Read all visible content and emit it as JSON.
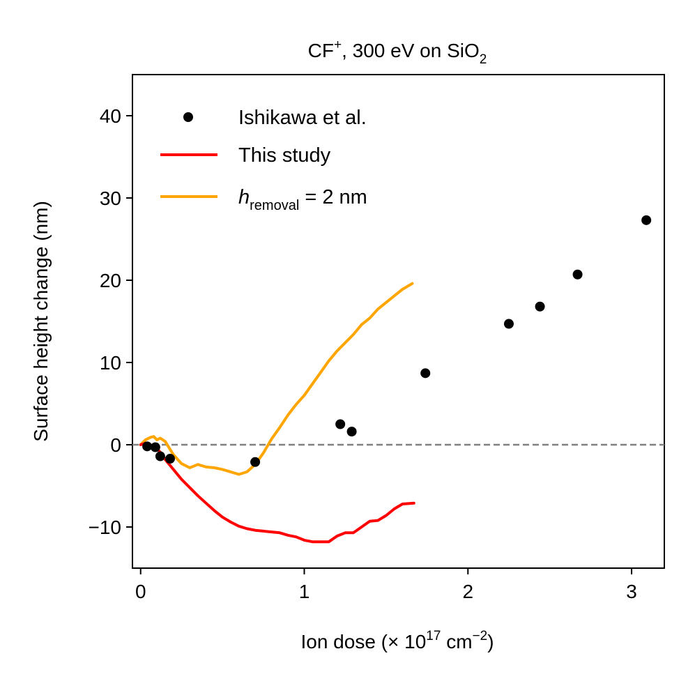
{
  "chart_data": {
    "type": "line",
    "title": {
      "prefix": "CF",
      "superscript": "+",
      "middle": ", 300 eV on SiO",
      "subscript": "2"
    },
    "xlabel": {
      "prefix": "Ion dose (× 10",
      "sup1": "17",
      "middle": " cm",
      "sup2": "−2",
      "suffix": ")"
    },
    "ylabel": "Surface height change (nm)",
    "xlim": [
      -0.05,
      3.2
    ],
    "ylim": [
      -15,
      45
    ],
    "xticks": [
      0,
      1,
      2,
      3
    ],
    "xtick_labels": [
      "0",
      "1",
      "2",
      "3"
    ],
    "yticks": [
      -10,
      0,
      10,
      20,
      30,
      40
    ],
    "ytick_labels": [
      "−10",
      "0",
      "10",
      "20",
      "30",
      "40"
    ],
    "reference_line": {
      "y": 0,
      "style": "dashed",
      "color": "#808080"
    },
    "legend": {
      "position": "top-left",
      "entries": [
        {
          "label": "Ishikawa et al.",
          "marker": "dot",
          "color": "#000000"
        },
        {
          "label": "This study",
          "marker": "line",
          "color": "#ff0000"
        },
        {
          "label_prefix": "h",
          "label_sub": "removal",
          "label_suffix": " = 2 nm",
          "marker": "line",
          "color": "#ffa500"
        }
      ]
    },
    "series": [
      {
        "name": "Ishikawa et al.",
        "kind": "scatter",
        "color": "#000000",
        "x": [
          0.04,
          0.09,
          0.12,
          0.18,
          0.7,
          1.22,
          1.29,
          1.74,
          2.25,
          2.44,
          2.67,
          3.09
        ],
        "y": [
          -0.2,
          -0.3,
          -1.4,
          -1.7,
          -2.1,
          2.5,
          1.6,
          8.7,
          14.7,
          16.8,
          20.7,
          27.3
        ]
      },
      {
        "name": "This study",
        "kind": "line",
        "color": "#ff0000",
        "x": [
          0.0,
          0.03,
          0.06,
          0.09,
          0.12,
          0.15,
          0.2,
          0.25,
          0.3,
          0.35,
          0.4,
          0.45,
          0.5,
          0.55,
          0.6,
          0.65,
          0.7,
          0.75,
          0.8,
          0.85,
          0.9,
          0.95,
          1.0,
          1.05,
          1.1,
          1.15,
          1.2,
          1.25,
          1.3,
          1.35,
          1.4,
          1.45,
          1.5,
          1.55,
          1.6,
          1.67
        ],
        "y": [
          0.0,
          0.2,
          0.0,
          -0.3,
          -0.9,
          -1.8,
          -3.0,
          -4.2,
          -5.2,
          -6.2,
          -7.1,
          -8.0,
          -8.8,
          -9.4,
          -9.9,
          -10.2,
          -10.4,
          -10.5,
          -10.6,
          -10.7,
          -11.0,
          -11.2,
          -11.6,
          -11.8,
          -11.8,
          -11.8,
          -11.1,
          -10.7,
          -10.7,
          -10.0,
          -9.3,
          -9.2,
          -8.6,
          -7.8,
          -7.2,
          -7.1
        ]
      },
      {
        "name": "h_removal = 2 nm",
        "kind": "line",
        "color": "#ffa500",
        "x": [
          0.0,
          0.03,
          0.06,
          0.08,
          0.1,
          0.12,
          0.15,
          0.2,
          0.25,
          0.3,
          0.35,
          0.4,
          0.45,
          0.5,
          0.55,
          0.6,
          0.65,
          0.7,
          0.75,
          0.8,
          0.85,
          0.9,
          0.95,
          1.0,
          1.05,
          1.1,
          1.15,
          1.2,
          1.25,
          1.3,
          1.35,
          1.4,
          1.45,
          1.5,
          1.55,
          1.6,
          1.66
        ],
        "y": [
          0.0,
          0.6,
          0.9,
          1.0,
          0.6,
          0.8,
          0.4,
          -1.2,
          -2.3,
          -2.8,
          -2.4,
          -2.7,
          -2.8,
          -3.0,
          -3.3,
          -3.6,
          -3.3,
          -2.4,
          -1.0,
          0.7,
          2.1,
          3.6,
          4.9,
          6.0,
          7.4,
          8.8,
          10.2,
          11.4,
          12.4,
          13.4,
          14.6,
          15.4,
          16.5,
          17.3,
          18.1,
          18.9,
          19.6
        ]
      }
    ]
  }
}
